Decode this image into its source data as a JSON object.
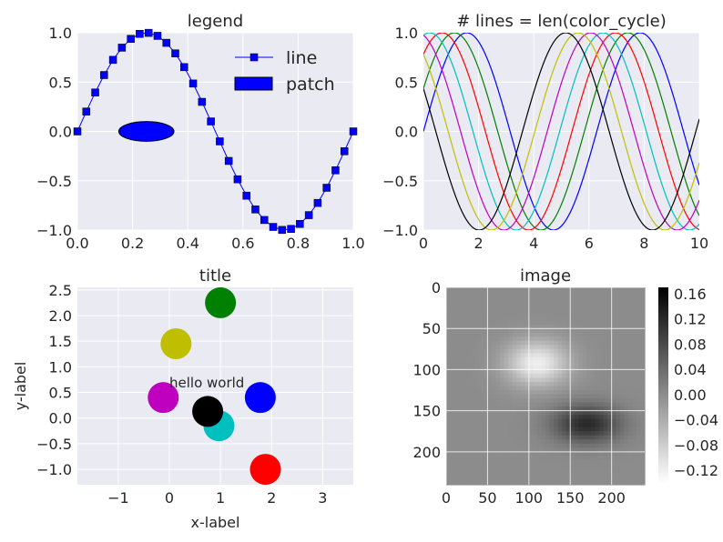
{
  "chart_data": [
    {
      "type": "line",
      "title": "legend",
      "xlim": [
        0,
        1
      ],
      "ylim": [
        -1,
        1
      ],
      "xticks": [
        "0.0",
        "0.2",
        "0.4",
        "0.6",
        "0.8",
        "1.0"
      ],
      "yticks": [
        "1.0",
        "0.5",
        "0.0",
        "−0.5",
        "−1.0"
      ],
      "series": [
        {
          "name": "line",
          "function": "sin(2*pi*x)",
          "points": 32,
          "marker": "square",
          "color": "#0000ff"
        }
      ],
      "ellipse": {
        "name": "patch",
        "center": [
          0.25,
          0.0
        ],
        "width": 0.2,
        "height": 0.2,
        "color": "#0000ff"
      },
      "legend": {
        "position": "top-right",
        "entries": [
          "line",
          "patch"
        ]
      }
    },
    {
      "type": "line",
      "title": "# lines = len(color_cycle)",
      "xlim": [
        0,
        10
      ],
      "ylim": [
        -1,
        1
      ],
      "xticks": [
        "0",
        "2",
        "4",
        "6",
        "8",
        "10"
      ],
      "yticks": [
        "1.0",
        "0.5",
        "0.0",
        "−0.5",
        "−1.0"
      ],
      "function": "sin(x + phase)",
      "colors": [
        "#0000ff",
        "#008000",
        "#ff0000",
        "#00bfbf",
        "#bf00bf",
        "#bfbf00",
        "#000000"
      ]
    },
    {
      "type": "scatter",
      "title": "title",
      "xlabel": "x-label",
      "ylabel": "y-label",
      "xlim": [
        -1.8,
        3.6
      ],
      "ylim": [
        -1.3,
        2.55
      ],
      "xticks": [
        "−1",
        "0",
        "1",
        "2",
        "3"
      ],
      "yticks": [
        "2.5",
        "2.0",
        "1.5",
        "1.0",
        "0.5",
        "0.0",
        "−0.5",
        "−1.0"
      ],
      "points": [
        {
          "x": 1.0,
          "y": 2.25,
          "color": "#008000"
        },
        {
          "x": 0.13,
          "y": 1.45,
          "color": "#bfbf00"
        },
        {
          "x": -0.12,
          "y": 0.4,
          "color": "#bf00bf"
        },
        {
          "x": 1.78,
          "y": 0.4,
          "color": "#0000ff"
        },
        {
          "x": 0.97,
          "y": -0.15,
          "color": "#00bfbf"
        },
        {
          "x": 0.75,
          "y": 0.13,
          "color": "#000000"
        },
        {
          "x": 1.88,
          "y": -1.0,
          "color": "#ff0000"
        }
      ],
      "annotation": {
        "text": "hello world",
        "x": 0.0,
        "y": 0.6
      }
    },
    {
      "type": "heatmap",
      "title": "image",
      "xticks": [
        "0",
        "50",
        "100",
        "150",
        "200"
      ],
      "yticks": [
        "0",
        "50",
        "100",
        "150",
        "200"
      ],
      "extent": [
        0,
        240,
        0,
        240
      ],
      "colormap": "gray_r",
      "colorbar_ticks": [
        "0.16",
        "0.12",
        "0.08",
        "0.04",
        "0.00",
        "−0.04",
        "−0.08",
        "−0.12"
      ],
      "colorbar_range": [
        -0.14,
        0.17
      ]
    }
  ]
}
